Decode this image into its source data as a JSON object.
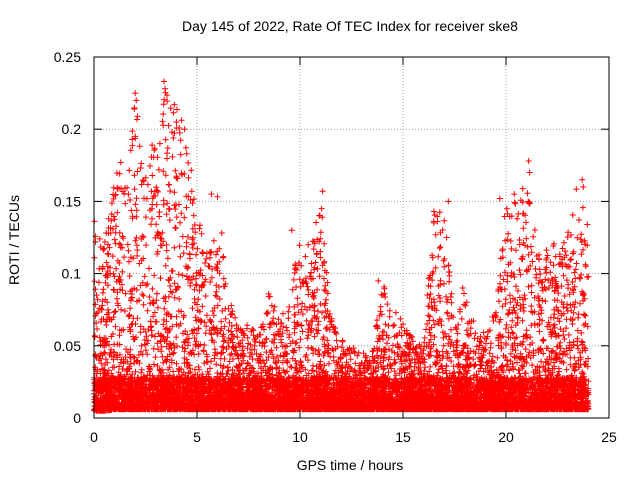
{
  "chart_data": {
    "type": "scatter",
    "title": "Day 145 of 2022, Rate Of TEC Index for receiver ske8",
    "xlabel": "GPS time / hours",
    "ylabel": "ROTI / TECUs",
    "xlim": [
      0,
      25
    ],
    "ylim": [
      0,
      0.25
    ],
    "xticks": [
      0,
      5,
      10,
      15,
      20,
      25
    ],
    "yticks": [
      0,
      0.05,
      0.1,
      0.15,
      0.2,
      0.25
    ],
    "xtick_labels": [
      "0",
      "5",
      "10",
      "15",
      "20",
      "25"
    ],
    "ytick_labels": [
      "0",
      "0.05",
      "0.1",
      "0.15",
      "0.2",
      "0.25"
    ],
    "grid": true,
    "marker": "+",
    "color": "#ff0000",
    "series": [
      {
        "name": "ROTI",
        "envelope": {
          "x": [
            0,
            0.5,
            1,
            1.5,
            2,
            2.5,
            3,
            3.5,
            4,
            4.5,
            5,
            5.5,
            6,
            6.5,
            7,
            7.5,
            8,
            8.5,
            9,
            9.5,
            10,
            10.5,
            11,
            11.5,
            12,
            12.5,
            13,
            13.5,
            14,
            14.5,
            15,
            15.5,
            16,
            16.5,
            17,
            17.5,
            18,
            18.5,
            19,
            19.5,
            20,
            20.5,
            21,
            21.5,
            22,
            22.5,
            23,
            23.5,
            24
          ],
          "y_max": [
            0.14,
            0.12,
            0.17,
            0.17,
            0.225,
            0.18,
            0.195,
            0.233,
            0.215,
            0.2,
            0.14,
            0.12,
            0.155,
            0.09,
            0.065,
            0.065,
            0.06,
            0.09,
            0.07,
            0.08,
            0.13,
            0.12,
            0.155,
            0.07,
            0.055,
            0.05,
            0.045,
            0.045,
            0.095,
            0.08,
            0.065,
            0.055,
            0.06,
            0.14,
            0.15,
            0.06,
            0.09,
            0.065,
            0.06,
            0.075,
            0.15,
            0.15,
            0.178,
            0.12,
            0.125,
            0.12,
            0.13,
            0.165,
            0.14
          ],
          "y_min": [
            0.005,
            0.005,
            0.006,
            0.006,
            0.006,
            0.006,
            0.006,
            0.006,
            0.006,
            0.006,
            0.006,
            0.006,
            0.006,
            0.006,
            0.006,
            0.006,
            0.006,
            0.006,
            0.006,
            0.006,
            0.006,
            0.006,
            0.006,
            0.006,
            0.006,
            0.006,
            0.006,
            0.006,
            0.006,
            0.006,
            0.006,
            0.006,
            0.006,
            0.006,
            0.006,
            0.006,
            0.006,
            0.006,
            0.006,
            0.006,
            0.006,
            0.006,
            0.006,
            0.006,
            0.006,
            0.006,
            0.006,
            0.006,
            0.006
          ]
        },
        "notable_points": [
          {
            "x": 2.0,
            "y": 0.225
          },
          {
            "x": 2.05,
            "y": 0.22
          },
          {
            "x": 3.4,
            "y": 0.233
          },
          {
            "x": 3.45,
            "y": 0.228
          },
          {
            "x": 3.9,
            "y": 0.217
          },
          {
            "x": 4.0,
            "y": 0.205
          },
          {
            "x": 4.4,
            "y": 0.2
          },
          {
            "x": 3.2,
            "y": 0.19
          },
          {
            "x": 2.0,
            "y": 0.195
          },
          {
            "x": 4.5,
            "y": 0.183
          },
          {
            "x": 1.3,
            "y": 0.177
          },
          {
            "x": 5.7,
            "y": 0.155
          },
          {
            "x": 11.1,
            "y": 0.157
          },
          {
            "x": 11.05,
            "y": 0.145
          },
          {
            "x": 16.5,
            "y": 0.143
          },
          {
            "x": 17.2,
            "y": 0.15
          },
          {
            "x": 19.7,
            "y": 0.152
          },
          {
            "x": 20.4,
            "y": 0.155
          },
          {
            "x": 21.1,
            "y": 0.178
          },
          {
            "x": 21.15,
            "y": 0.17
          },
          {
            "x": 23.7,
            "y": 0.165
          },
          {
            "x": 23.75,
            "y": 0.16
          },
          {
            "x": 9.6,
            "y": 0.13
          },
          {
            "x": 10.4,
            "y": 0.12
          },
          {
            "x": 13.8,
            "y": 0.095
          },
          {
            "x": 17.9,
            "y": 0.09
          },
          {
            "x": 15.0,
            "y": 0.065
          },
          {
            "x": 12.5,
            "y": 0.047
          }
        ]
      }
    ]
  }
}
